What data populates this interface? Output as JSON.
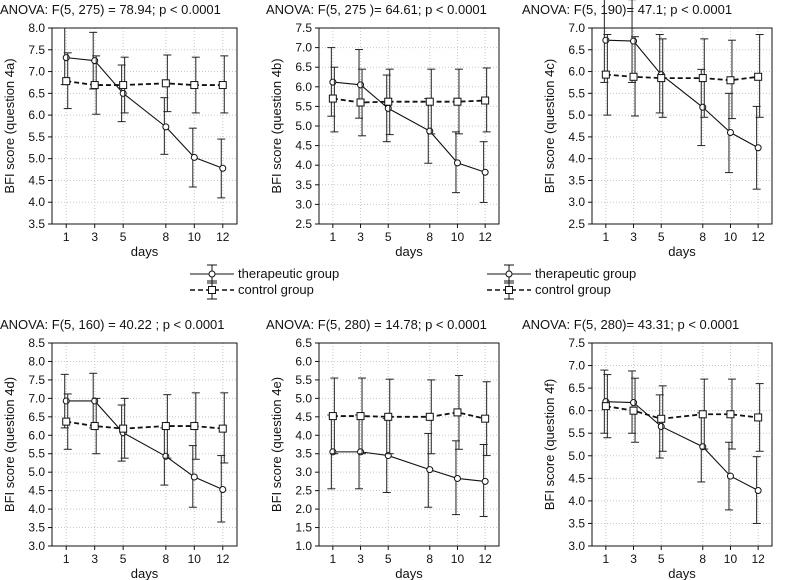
{
  "legend": {
    "therapeutic": "therapeutic group",
    "control": "control group"
  },
  "chart_data": [
    {
      "type": "line",
      "title": "ANOVA: F(5, 275) = 78.94;  p < 0.0001",
      "xlabel": "days",
      "ylabel": "BFI score (question 4a)",
      "categories": [
        "1",
        "3",
        "5",
        "8",
        "10",
        "12"
      ],
      "ylim": [
        3.5,
        8.0
      ],
      "yticks": [
        "3.5",
        "4.0",
        "4.5",
        "5.0",
        "5.5",
        "6.0",
        "6.5",
        "7.0",
        "7.5",
        "8.0"
      ],
      "series": [
        {
          "name": "therapeutic group",
          "values": [
            7.32,
            7.25,
            6.5,
            5.73,
            5.03,
            4.78
          ],
          "lower": [
            6.7,
            6.6,
            5.85,
            5.1,
            4.35,
            4.1
          ],
          "upper": [
            8.0,
            7.9,
            7.15,
            6.4,
            5.7,
            5.45
          ]
        },
        {
          "name": "control group",
          "values": [
            6.78,
            6.69,
            6.69,
            6.73,
            6.69,
            6.69
          ],
          "lower": [
            6.15,
            6.02,
            6.05,
            6.08,
            6.05,
            6.05
          ],
          "upper": [
            7.43,
            7.36,
            7.33,
            7.38,
            7.33,
            7.36
          ]
        }
      ]
    },
    {
      "type": "line",
      "title": "ANOVA: F(5, 275 )= 64.61; p < 0.0001",
      "xlabel": "days",
      "ylabel": "BFI score (question 4b)",
      "categories": [
        "1",
        "3",
        "5",
        "8",
        "10",
        "12"
      ],
      "ylim": [
        2.5,
        7.5
      ],
      "yticks": [
        "2.5",
        "3.0",
        "3.5",
        "4.0",
        "4.5",
        "5.0",
        "5.5",
        "6.0",
        "6.5",
        "7.0",
        "7.5"
      ],
      "series": [
        {
          "name": "therapeutic group",
          "values": [
            6.12,
            6.05,
            5.45,
            4.87,
            4.06,
            3.82
          ],
          "lower": [
            5.25,
            5.2,
            4.6,
            4.05,
            3.3,
            3.05
          ],
          "upper": [
            7.0,
            6.95,
            6.3,
            5.7,
            4.85,
            4.6
          ]
        },
        {
          "name": "control group",
          "values": [
            5.7,
            5.6,
            5.62,
            5.62,
            5.62,
            5.65
          ],
          "lower": [
            4.85,
            4.75,
            4.78,
            4.8,
            4.8,
            4.85
          ],
          "upper": [
            6.5,
            6.45,
            6.45,
            6.45,
            6.45,
            6.48
          ]
        }
      ]
    },
    {
      "type": "line",
      "title": "ANOVA: F(5, 190)= 47.1; p < 0.0001",
      "xlabel": "days",
      "ylabel": "BFI score (question 4c)",
      "categories": [
        "1",
        "3",
        "5",
        "8",
        "10",
        "12"
      ],
      "ylim": [
        2.5,
        7.0
      ],
      "yticks": [
        "2.5",
        "3.0",
        "3.5",
        "4.0",
        "4.5",
        "5.0",
        "5.5",
        "6.0",
        "6.5",
        "7.0"
      ],
      "series": [
        {
          "name": "therapeutic group",
          "values": [
            6.72,
            6.7,
            5.93,
            5.18,
            4.6,
            4.25
          ],
          "lower": [
            5.75,
            5.75,
            5.05,
            4.3,
            3.68,
            3.3
          ],
          "upper": [
            7.68,
            7.65,
            6.85,
            6.05,
            5.5,
            5.2
          ]
        },
        {
          "name": "control group",
          "values": [
            5.93,
            5.88,
            5.85,
            5.85,
            5.8,
            5.88
          ],
          "lower": [
            5.0,
            4.98,
            4.95,
            4.95,
            4.92,
            4.95
          ],
          "upper": [
            6.85,
            6.8,
            6.75,
            6.75,
            6.72,
            6.85
          ]
        }
      ]
    },
    {
      "type": "line",
      "title": "ANOVA: F(5, 160) = 40.22 ; p < 0.0001",
      "xlabel": "days",
      "ylabel": "BFI score (question 4d)",
      "categories": [
        "1",
        "3",
        "5",
        "8",
        "10",
        "12"
      ],
      "ylim": [
        3.0,
        8.5
      ],
      "yticks": [
        "3.0",
        "3.5",
        "4.0",
        "4.5",
        "5.0",
        "5.5",
        "6.0",
        "6.5",
        "7.0",
        "7.5",
        "8.0",
        "8.5"
      ],
      "series": [
        {
          "name": "therapeutic group",
          "values": [
            6.93,
            6.93,
            6.07,
            5.43,
            4.87,
            4.53
          ],
          "lower": [
            6.2,
            6.2,
            5.3,
            4.65,
            4.05,
            3.65
          ],
          "upper": [
            7.65,
            7.68,
            6.82,
            6.2,
            5.72,
            5.45
          ]
        },
        {
          "name": "control group",
          "values": [
            6.37,
            6.25,
            6.18,
            6.25,
            6.25,
            6.18
          ],
          "lower": [
            5.62,
            5.5,
            5.38,
            5.38,
            5.35,
            5.25
          ],
          "upper": [
            7.12,
            7.0,
            7.0,
            7.1,
            7.15,
            7.15
          ]
        }
      ]
    },
    {
      "type": "line",
      "title": "ANOVA: F(5, 280) = 14.78; p < 0.0001",
      "xlabel": "days",
      "ylabel": "BFI score (question 4e)",
      "categories": [
        "1",
        "3",
        "5",
        "8",
        "10",
        "12"
      ],
      "ylim": [
        1.0,
        6.5
      ],
      "yticks": [
        "1.0",
        "1.5",
        "2.0",
        "2.5",
        "3.0",
        "3.5",
        "4.0",
        "4.5",
        "5.0",
        "5.5",
        "6.0",
        "6.5"
      ],
      "series": [
        {
          "name": "therapeutic group",
          "values": [
            3.55,
            3.55,
            3.45,
            3.07,
            2.83,
            2.75
          ],
          "lower": [
            2.55,
            2.55,
            2.45,
            2.05,
            1.85,
            1.8
          ],
          "upper": [
            4.55,
            4.55,
            4.45,
            4.05,
            3.85,
            3.75
          ]
        },
        {
          "name": "control group",
          "values": [
            4.52,
            4.52,
            4.5,
            4.5,
            4.62,
            4.45
          ],
          "lower": [
            3.5,
            3.5,
            3.5,
            3.5,
            3.62,
            3.45
          ],
          "upper": [
            5.55,
            5.55,
            5.52,
            5.5,
            5.62,
            5.45
          ]
        }
      ]
    },
    {
      "type": "line",
      "title": "ANOVA: F(5, 280)= 43.31; p < 0.0001",
      "xlabel": "days",
      "ylabel": "BFI score (question 4f)",
      "categories": [
        "1",
        "3",
        "5",
        "8",
        "10",
        "12"
      ],
      "ylim": [
        3.0,
        7.5
      ],
      "yticks": [
        "3.0",
        "3.5",
        "4.0",
        "4.5",
        "5.0",
        "5.5",
        "6.0",
        "6.5",
        "7.0",
        "7.5"
      ],
      "series": [
        {
          "name": "therapeutic group",
          "values": [
            6.2,
            6.18,
            5.65,
            5.2,
            4.55,
            4.23
          ],
          "lower": [
            5.5,
            5.5,
            4.95,
            4.42,
            3.8,
            3.5
          ],
          "upper": [
            6.9,
            6.88,
            6.35,
            5.95,
            5.3,
            4.98
          ]
        },
        {
          "name": "control group",
          "values": [
            6.1,
            6.0,
            5.82,
            5.92,
            5.92,
            5.85
          ],
          "lower": [
            5.4,
            5.3,
            5.1,
            5.15,
            5.15,
            5.1
          ],
          "upper": [
            6.8,
            6.72,
            6.55,
            6.7,
            6.7,
            6.6
          ]
        }
      ]
    }
  ]
}
